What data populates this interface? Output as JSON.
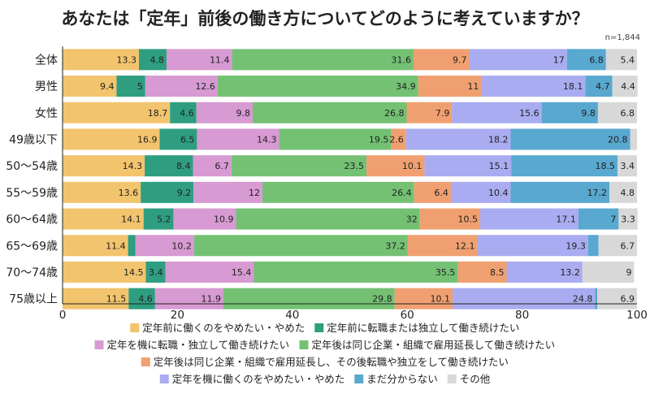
{
  "chart_data": {
    "type": "bar",
    "orientation": "horizontal",
    "stacked": true,
    "title": "あなたは「定年」前後の働き方についてどのように考えていますか？",
    "note": "n=1,844",
    "xlim": [
      0,
      100
    ],
    "xticks": [
      "0",
      "20",
      "40",
      "60",
      "80",
      "100"
    ],
    "grid": false,
    "legend_position": "bottom",
    "categories": [
      "全体",
      "男性",
      "女性",
      "49歳以下",
      "50〜54歳",
      "55〜59歳",
      "60〜64歳",
      "65〜69歳",
      "70〜74歳",
      "75歳以上"
    ],
    "series": [
      {
        "name": "定年前に働くのをやめたい・やめた",
        "color": "#f2c46d",
        "values": [
          13.3,
          9.4,
          18.7,
          16.9,
          14.3,
          13.6,
          14.1,
          11.4,
          14.5,
          11.5
        ],
        "labels": [
          "13.3",
          "9.4",
          "18.7",
          "16.9",
          "14.3",
          "13.6",
          "14.1",
          "11.4",
          "14.5",
          "11.5"
        ]
      },
      {
        "name": "定年前に転職または独立して働き続けたい",
        "color": "#2f9e80",
        "values": [
          4.8,
          5,
          4.6,
          6.5,
          8.4,
          9.2,
          5.2,
          1.3,
          3.4,
          4.6
        ],
        "labels": [
          "4.8",
          "5",
          "4.6",
          "6.5",
          "8.4",
          "9.2",
          "5.2",
          "",
          "3.4",
          "4.6"
        ]
      },
      {
        "name": "定年を機に転職・独立して働き続けたい",
        "color": "#d79ad2",
        "values": [
          11.4,
          12.6,
          9.8,
          14.3,
          6.7,
          12,
          10.9,
          10.2,
          15.4,
          11.9
        ],
        "labels": [
          "11.4",
          "12.6",
          "9.8",
          "14.3",
          "6.7",
          "12",
          "10.9",
          "10.2",
          "15.4",
          "11.9"
        ]
      },
      {
        "name": "定年後は同じ企業・組織で雇用延長して働き続けたい",
        "color": "#74c174",
        "values": [
          31.6,
          34.9,
          26.8,
          19.5,
          23.5,
          26.4,
          32,
          37.2,
          35.5,
          29.8
        ],
        "labels": [
          "31.6",
          "34.9",
          "26.8",
          "19.5",
          "23.5",
          "26.4",
          "32",
          "37.2",
          "35.5",
          "29.8"
        ]
      },
      {
        "name": "定年後は同じ企業・組織で雇用延長し、その後転職や独立をして働き続けたい",
        "color": "#f0a070",
        "values": [
          9.7,
          11,
          7.9,
          2.6,
          10.1,
          6.4,
          10.5,
          12.1,
          8.5,
          10.1
        ],
        "labels": [
          "9.7",
          "11",
          "7.9",
          "2.6",
          "10.1",
          "6.4",
          "10.5",
          "12.1",
          "8.5",
          "10.1"
        ]
      },
      {
        "name": "定年を機に働くのをやめたい・やめた",
        "color": "#a9acf0",
        "values": [
          17,
          18.1,
          15.6,
          18.2,
          15.1,
          10.4,
          17.1,
          19.3,
          13.2,
          24.8
        ],
        "labels": [
          "17",
          "18.1",
          "15.6",
          "18.2",
          "15.1",
          "10.4",
          "17.1",
          "19.3",
          "13.2",
          "24.8"
        ]
      },
      {
        "name": "まだ分からない",
        "color": "#58a8cf",
        "values": [
          6.8,
          4.7,
          9.8,
          20.8,
          18.5,
          17.2,
          7,
          1.8,
          0,
          0.4
        ],
        "labels": [
          "6.8",
          "4.7",
          "9.8",
          "20.8",
          "18.5",
          "17.2",
          "7",
          "",
          "",
          ""
        ]
      },
      {
        "name": "その他",
        "color": "#d8d8d8",
        "values": [
          5.4,
          4.4,
          6.8,
          1.2,
          3.4,
          4.8,
          3.3,
          6.7,
          9,
          6.9
        ],
        "labels": [
          "5.4",
          "4.4",
          "6.8",
          "",
          "3.4",
          "4.8",
          "3.3",
          "6.7",
          "9",
          "6.9"
        ]
      }
    ]
  }
}
